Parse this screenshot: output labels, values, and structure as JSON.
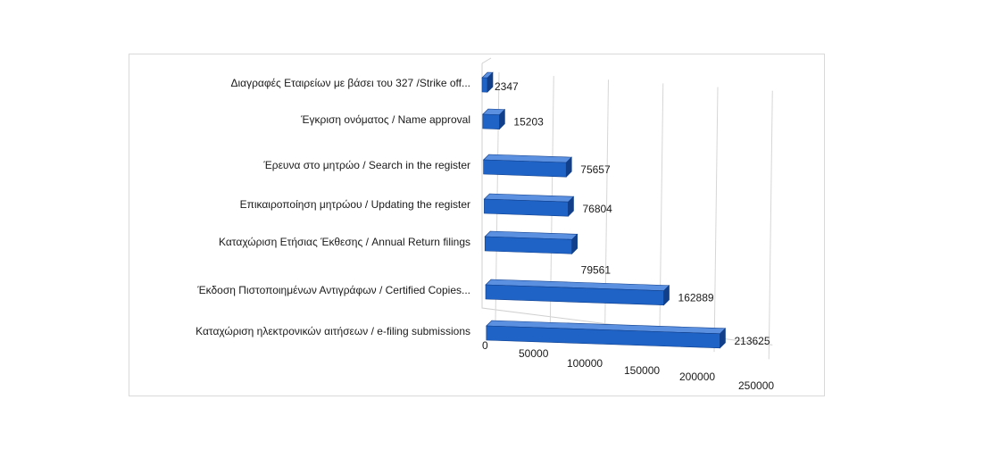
{
  "chart_data": {
    "type": "bar",
    "orientation": "horizontal",
    "style": "3d",
    "categories": [
      "Διαγραφές Εταιρείων  με  βάσει του 327 /Strike off...",
      "Έγκριση ονόματος / Name approval",
      "Έρευνα στο μητρώο / Search in the register",
      "Επικαιροποίηση μητρώου / Updating the register",
      "Καταχώριση Ετήσιας Έκθεσης / Annual Return filings",
      "Έκδοση Πιστοποιημένων Αντιγράφων  / Certified Copies...",
      "Καταχώριση ηλεκτρονικών αιτήσεων / e-filing submissions"
    ],
    "values": [
      2347,
      15203,
      75657,
      76804,
      79561,
      162889,
      213625
    ],
    "value_labels": [
      "2347",
      "15203",
      "75657",
      "76804",
      "79561",
      "162889",
      "213625"
    ],
    "x_ticks": [
      "0",
      "50000",
      "100000",
      "150000",
      "200000",
      "250000"
    ],
    "xlim": [
      0,
      250000
    ],
    "grid": true,
    "legend": "none",
    "bar_color": "#1f63c6",
    "bar_top_color": "#5b8fe0",
    "bar_side_color": "#123f8a"
  }
}
